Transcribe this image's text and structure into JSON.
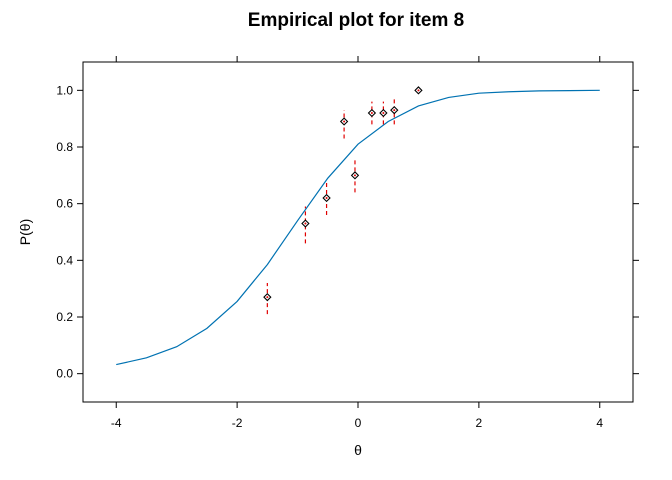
{
  "chart_data": {
    "type": "scatter",
    "title": "Empirical plot for item 8",
    "xlabel": "θ",
    "ylabel": "P(θ)",
    "xlim": [
      -4.55,
      4.55
    ],
    "ylim": [
      -0.1,
      1.1
    ],
    "x_ticks": [
      -4,
      -2,
      0,
      2,
      4
    ],
    "y_ticks": [
      0.0,
      0.2,
      0.4,
      0.6,
      0.8,
      1.0
    ],
    "x_tick_labels": [
      "-4",
      "-2",
      "0",
      "2",
      "4"
    ],
    "y_tick_labels": [
      "0.0",
      "0.2",
      "0.4",
      "0.6",
      "0.8",
      "1.0"
    ],
    "grid": false,
    "colors": {
      "curve": "#0072b2",
      "error_bar": "#e00000",
      "point": "#000000",
      "point_center": "#e00000",
      "axes": "#000000"
    },
    "curve": {
      "name": "",
      "x": [
        -4.0,
        -3.5,
        -3.0,
        -2.5,
        -2.0,
        -1.5,
        -1.0,
        -0.5,
        0.0,
        0.5,
        1.0,
        1.5,
        2.0,
        2.5,
        3.0,
        3.5,
        4.0
      ],
      "y": [
        0.032,
        0.056,
        0.095,
        0.16,
        0.255,
        0.385,
        0.54,
        0.69,
        0.81,
        0.89,
        0.945,
        0.975,
        0.99,
        0.995,
        0.998,
        0.999,
        1.0
      ]
    },
    "points": [
      {
        "x": -1.5,
        "y": 0.27,
        "lower": 0.21,
        "upper": 0.32
      },
      {
        "x": -0.87,
        "y": 0.53,
        "lower": 0.46,
        "upper": 0.59
      },
      {
        "x": -0.52,
        "y": 0.62,
        "lower": 0.56,
        "upper": 0.68
      },
      {
        "x": -0.23,
        "y": 0.89,
        "lower": 0.83,
        "upper": 0.93
      },
      {
        "x": -0.05,
        "y": 0.7,
        "lower": 0.64,
        "upper": 0.76
      },
      {
        "x": 0.23,
        "y": 0.92,
        "lower": 0.88,
        "upper": 0.96
      },
      {
        "x": 0.42,
        "y": 0.92,
        "lower": 0.88,
        "upper": 0.96
      },
      {
        "x": 0.6,
        "y": 0.93,
        "lower": 0.88,
        "upper": 0.97
      },
      {
        "x": 1.0,
        "y": 1.0,
        "lower": 0.99,
        "upper": 1.01
      }
    ]
  }
}
